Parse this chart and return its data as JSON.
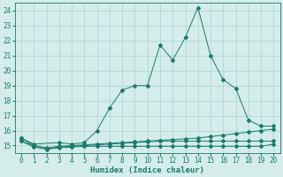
{
  "xlabel": "Humidex (Indice chaleur)",
  "x": [
    0,
    1,
    2,
    3,
    4,
    5,
    6,
    7,
    8,
    9,
    10,
    11,
    12,
    13,
    14,
    15,
    16,
    17,
    18,
    19,
    20
  ],
  "line1": [
    15.5,
    15.1,
    null,
    15.2,
    15.1,
    15.2,
    16.0,
    17.5,
    18.7,
    19.0,
    19.0,
    21.7,
    20.7,
    22.2,
    24.2,
    21.0,
    19.4,
    18.8,
    16.7,
    16.3,
    16.3
  ],
  "line2": [
    15.3,
    15.0,
    14.85,
    14.95,
    15.0,
    15.05,
    15.1,
    15.15,
    15.2,
    15.25,
    15.3,
    15.35,
    15.4,
    15.45,
    15.5,
    15.6,
    15.7,
    15.8,
    15.9,
    16.0,
    16.1
  ],
  "line3": [
    15.3,
    14.9,
    14.75,
    14.85,
    14.9,
    14.95,
    14.95,
    14.95,
    14.95,
    14.95,
    14.95,
    14.95,
    14.95,
    14.95,
    14.95,
    14.95,
    14.95,
    14.95,
    14.95,
    14.95,
    15.1
  ],
  "line4": [
    15.5,
    15.0,
    14.8,
    14.9,
    14.95,
    15.0,
    15.05,
    15.1,
    15.15,
    15.2,
    15.25,
    15.3,
    15.3,
    15.3,
    15.3,
    15.3,
    15.3,
    15.3,
    15.3,
    15.3,
    15.3
  ],
  "line_color": "#1a7a6e",
  "bg_color": "#d4ecea",
  "grid_color": "#a8d5cf",
  "ylim": [
    14.5,
    24.5
  ],
  "xlim": [
    -0.5,
    20.5
  ],
  "yticks": [
    15,
    16,
    17,
    18,
    19,
    20,
    21,
    22,
    23,
    24
  ],
  "xticks": [
    0,
    1,
    2,
    3,
    4,
    5,
    6,
    7,
    8,
    9,
    10,
    11,
    12,
    13,
    14,
    15,
    16,
    17,
    18,
    19,
    20
  ]
}
